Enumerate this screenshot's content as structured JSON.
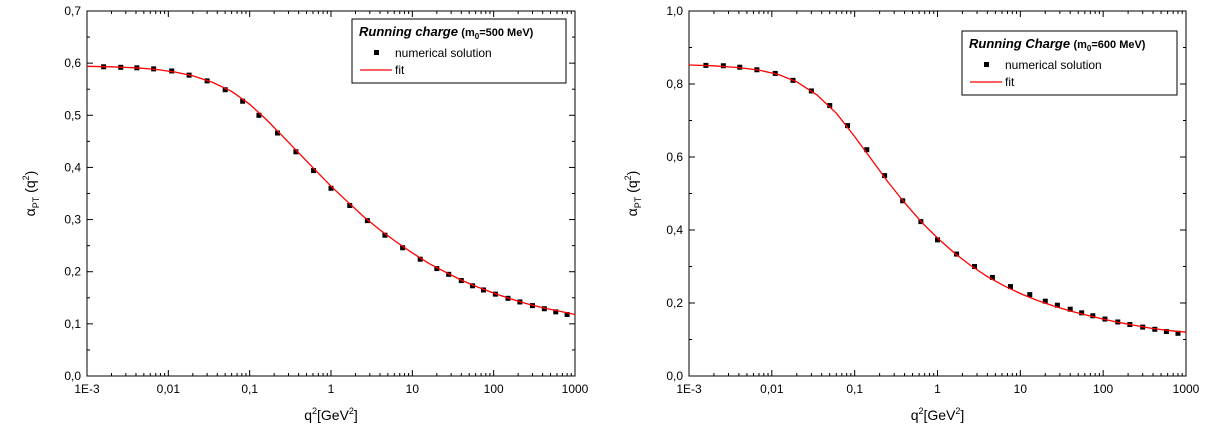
{
  "chart_data": [
    {
      "type": "scatter",
      "title": "",
      "legend": {
        "title_main": "Running charge",
        "title_sub_pre": "(m",
        "title_sub_index": "0",
        "title_sub_post": "=500 MeV)",
        "placement": "top-right"
      },
      "xlabel": {
        "main": "q",
        "sup": "2",
        "unit_pre": "[GeV",
        "unit_sup": "2",
        "unit_post": "]"
      },
      "ylabel": {
        "main": "α",
        "sub": "PT",
        "arg_pre": " (q",
        "arg_sup": "2",
        "arg_post": ")"
      },
      "xscale": "log",
      "xlim": [
        0.001,
        1000
      ],
      "ylim": [
        0,
        0.7
      ],
      "xticks": [
        0.001,
        0.01,
        0.1,
        1,
        10,
        100,
        1000
      ],
      "xtick_labels": [
        "1E-3",
        "0,01",
        "0,1",
        "1",
        "10",
        "100",
        "1000"
      ],
      "yticks": [
        0,
        0.1,
        0.2,
        0.3,
        0.4,
        0.5,
        0.6,
        0.7
      ],
      "ytick_labels": [
        "0,0",
        "0,1",
        "0,2",
        "0,3",
        "0,4",
        "0,5",
        "0,6",
        "0,7"
      ],
      "grid": false,
      "series": [
        {
          "name": "numerical solution",
          "kind": "scatter",
          "color": "#000000",
          "points": [
            [
              0.0016,
              0.593
            ],
            [
              0.0026,
              0.592
            ],
            [
              0.0041,
              0.591
            ],
            [
              0.0066,
              0.589
            ],
            [
              0.011,
              0.585
            ],
            [
              0.018,
              0.577
            ],
            [
              0.03,
              0.566
            ],
            [
              0.05,
              0.549
            ],
            [
              0.082,
              0.527
            ],
            [
              0.13,
              0.5
            ],
            [
              0.22,
              0.466
            ],
            [
              0.37,
              0.43
            ],
            [
              0.61,
              0.394
            ],
            [
              1.0,
              0.36
            ],
            [
              1.7,
              0.327
            ],
            [
              2.8,
              0.298
            ],
            [
              4.6,
              0.27
            ],
            [
              7.6,
              0.246
            ],
            [
              12.5,
              0.224
            ],
            [
              20,
              0.206
            ],
            [
              28,
              0.195
            ],
            [
              40,
              0.183
            ],
            [
              55,
              0.173
            ],
            [
              75,
              0.165
            ],
            [
              105,
              0.157
            ],
            [
              150,
              0.149
            ],
            [
              210,
              0.142
            ],
            [
              300,
              0.135
            ],
            [
              420,
              0.129
            ],
            [
              580,
              0.123
            ],
            [
              800,
              0.118
            ]
          ]
        },
        {
          "name": "fit",
          "kind": "line",
          "color": "#ff0000",
          "points": [
            [
              0.001,
              0.594
            ],
            [
              0.002,
              0.593
            ],
            [
              0.004,
              0.591
            ],
            [
              0.007,
              0.588
            ],
            [
              0.012,
              0.583
            ],
            [
              0.02,
              0.576
            ],
            [
              0.035,
              0.563
            ],
            [
              0.06,
              0.546
            ],
            [
              0.1,
              0.521
            ],
            [
              0.16,
              0.492
            ],
            [
              0.25,
              0.461
            ],
            [
              0.4,
              0.428
            ],
            [
              0.65,
              0.394
            ],
            [
              1.0,
              0.364
            ],
            [
              1.6,
              0.334
            ],
            [
              2.5,
              0.306
            ],
            [
              4,
              0.28
            ],
            [
              6.5,
              0.256
            ],
            [
              10,
              0.236
            ],
            [
              16,
              0.216
            ],
            [
              25,
              0.2
            ],
            [
              40,
              0.184
            ],
            [
              65,
              0.17
            ],
            [
              100,
              0.159
            ],
            [
              160,
              0.148
            ],
            [
              250,
              0.139
            ],
            [
              400,
              0.131
            ],
            [
              650,
              0.124
            ],
            [
              1000,
              0.118
            ]
          ]
        }
      ]
    },
    {
      "type": "scatter",
      "title": "",
      "legend": {
        "title_main": "Running Charge",
        "title_sub_pre": "(m",
        "title_sub_index": "0",
        "title_sub_post": "=600 MeV)",
        "placement": "top-right"
      },
      "xlabel": {
        "main": "q",
        "sup": "2",
        "unit_pre": "[GeV",
        "unit_sup": "2",
        "unit_post": "]"
      },
      "ylabel": {
        "main": "α",
        "sub": "PT",
        "arg_pre": " (q",
        "arg_sup": "2",
        "arg_post": ")"
      },
      "xscale": "log",
      "xlim": [
        0.001,
        1000
      ],
      "ylim": [
        0,
        1.0
      ],
      "xticks": [
        0.001,
        0.01,
        0.1,
        1,
        10,
        100,
        1000
      ],
      "xtick_labels": [
        "1E-3",
        "0,01",
        "0,1",
        "1",
        "10",
        "100",
        "1000"
      ],
      "yticks": [
        0,
        0.2,
        0.4,
        0.6,
        0.8,
        1.0
      ],
      "ytick_labels": [
        "0,0",
        "0,2",
        "0,4",
        "0,6",
        "0,8",
        "1,0"
      ],
      "grid": false,
      "series": [
        {
          "name": "numerical solution",
          "kind": "scatter",
          "color": "#000000",
          "points": [
            [
              0.0016,
              0.851
            ],
            [
              0.0026,
              0.85
            ],
            [
              0.0041,
              0.846
            ],
            [
              0.0066,
              0.839
            ],
            [
              0.011,
              0.829
            ],
            [
              0.018,
              0.81
            ],
            [
              0.03,
              0.781
            ],
            [
              0.05,
              0.741
            ],
            [
              0.082,
              0.686
            ],
            [
              0.14,
              0.62
            ],
            [
              0.23,
              0.549
            ],
            [
              0.38,
              0.48
            ],
            [
              0.63,
              0.423
            ],
            [
              1.0,
              0.373
            ],
            [
              1.7,
              0.334
            ],
            [
              2.8,
              0.3
            ],
            [
              4.6,
              0.27
            ],
            [
              7.6,
              0.245
            ],
            [
              13,
              0.223
            ],
            [
              20,
              0.205
            ],
            [
              28,
              0.194
            ],
            [
              40,
              0.183
            ],
            [
              55,
              0.173
            ],
            [
              75,
              0.165
            ],
            [
              105,
              0.156
            ],
            [
              150,
              0.148
            ],
            [
              210,
              0.141
            ],
            [
              300,
              0.134
            ],
            [
              420,
              0.128
            ],
            [
              580,
              0.122
            ],
            [
              800,
              0.117
            ]
          ]
        },
        {
          "name": "fit",
          "kind": "line",
          "color": "#ff0000",
          "points": [
            [
              0.001,
              0.852
            ],
            [
              0.002,
              0.85
            ],
            [
              0.004,
              0.845
            ],
            [
              0.007,
              0.838
            ],
            [
              0.012,
              0.826
            ],
            [
              0.02,
              0.806
            ],
            [
              0.035,
              0.77
            ],
            [
              0.06,
              0.72
            ],
            [
              0.1,
              0.656
            ],
            [
              0.16,
              0.593
            ],
            [
              0.25,
              0.533
            ],
            [
              0.4,
              0.475
            ],
            [
              0.65,
              0.42
            ],
            [
              1.0,
              0.378
            ],
            [
              1.6,
              0.337
            ],
            [
              2.5,
              0.303
            ],
            [
              4,
              0.272
            ],
            [
              6.5,
              0.246
            ],
            [
              10,
              0.226
            ],
            [
              16,
              0.207
            ],
            [
              25,
              0.192
            ],
            [
              40,
              0.178
            ],
            [
              65,
              0.166
            ],
            [
              100,
              0.156
            ],
            [
              160,
              0.146
            ],
            [
              250,
              0.138
            ],
            [
              400,
              0.13
            ],
            [
              650,
              0.124
            ],
            [
              1000,
              0.12
            ]
          ]
        }
      ]
    }
  ]
}
